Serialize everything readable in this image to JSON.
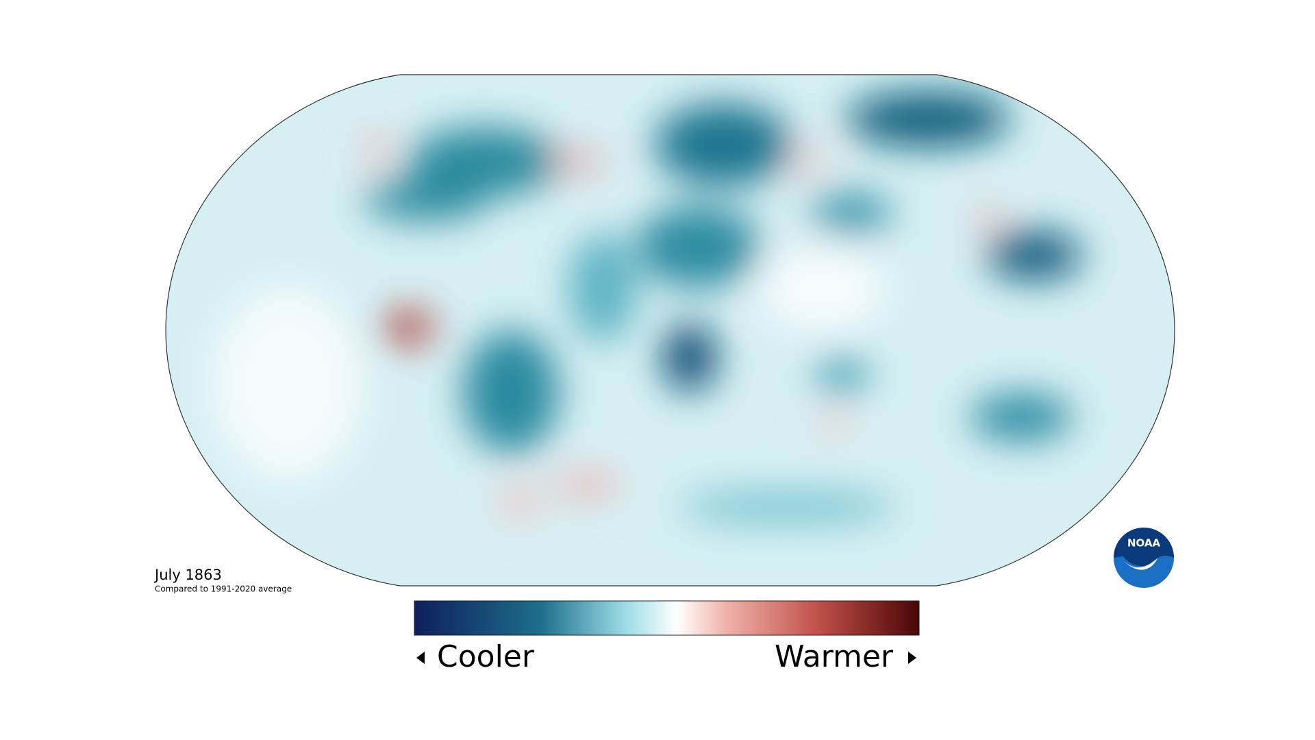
{
  "title": "July 1863",
  "subtitle": "Compared to 1991-2020 average",
  "legend": {
    "low": "Cooler",
    "high": "Warmer"
  },
  "logo": "NOAA"
}
